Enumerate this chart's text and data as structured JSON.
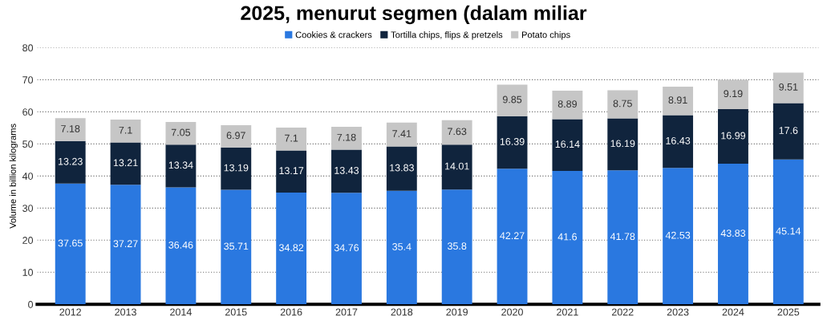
{
  "chart_data": {
    "type": "bar",
    "stacked": true,
    "title": "2025, menurut segmen (dalam miliar",
    "ylabel": "Volume in billion kilograms",
    "categories": [
      "2012",
      "2013",
      "2014",
      "2015",
      "2016",
      "2017",
      "2018",
      "2019",
      "2020",
      "2021",
      "2022",
      "2023",
      "2024",
      "2025"
    ],
    "series": [
      {
        "name": "Cookies & crackers",
        "color": "#2a78e0",
        "values": [
          37.65,
          37.27,
          36.46,
          35.71,
          34.82,
          34.76,
          35.4,
          35.8,
          42.27,
          41.6,
          41.78,
          42.53,
          43.83,
          45.14
        ]
      },
      {
        "name": "Tortilla chips, flips & pretzels",
        "color": "#10243d",
        "values": [
          13.23,
          13.21,
          13.34,
          13.19,
          13.17,
          13.43,
          13.83,
          14.01,
          16.39,
          16.14,
          16.19,
          16.43,
          16.99,
          17.6
        ]
      },
      {
        "name": "Potato chips",
        "color": "#c6c6c6",
        "values": [
          7.18,
          7.1,
          7.05,
          6.97,
          7.1,
          7.18,
          7.41,
          7.63,
          9.85,
          8.89,
          8.75,
          8.91,
          9.19,
          9.51
        ]
      }
    ],
    "ylim": [
      0,
      80
    ],
    "yticks": [
      0,
      10,
      20,
      30,
      40,
      50,
      60,
      70,
      80
    ],
    "grid": "y",
    "legend": "top",
    "data_labels": true
  }
}
